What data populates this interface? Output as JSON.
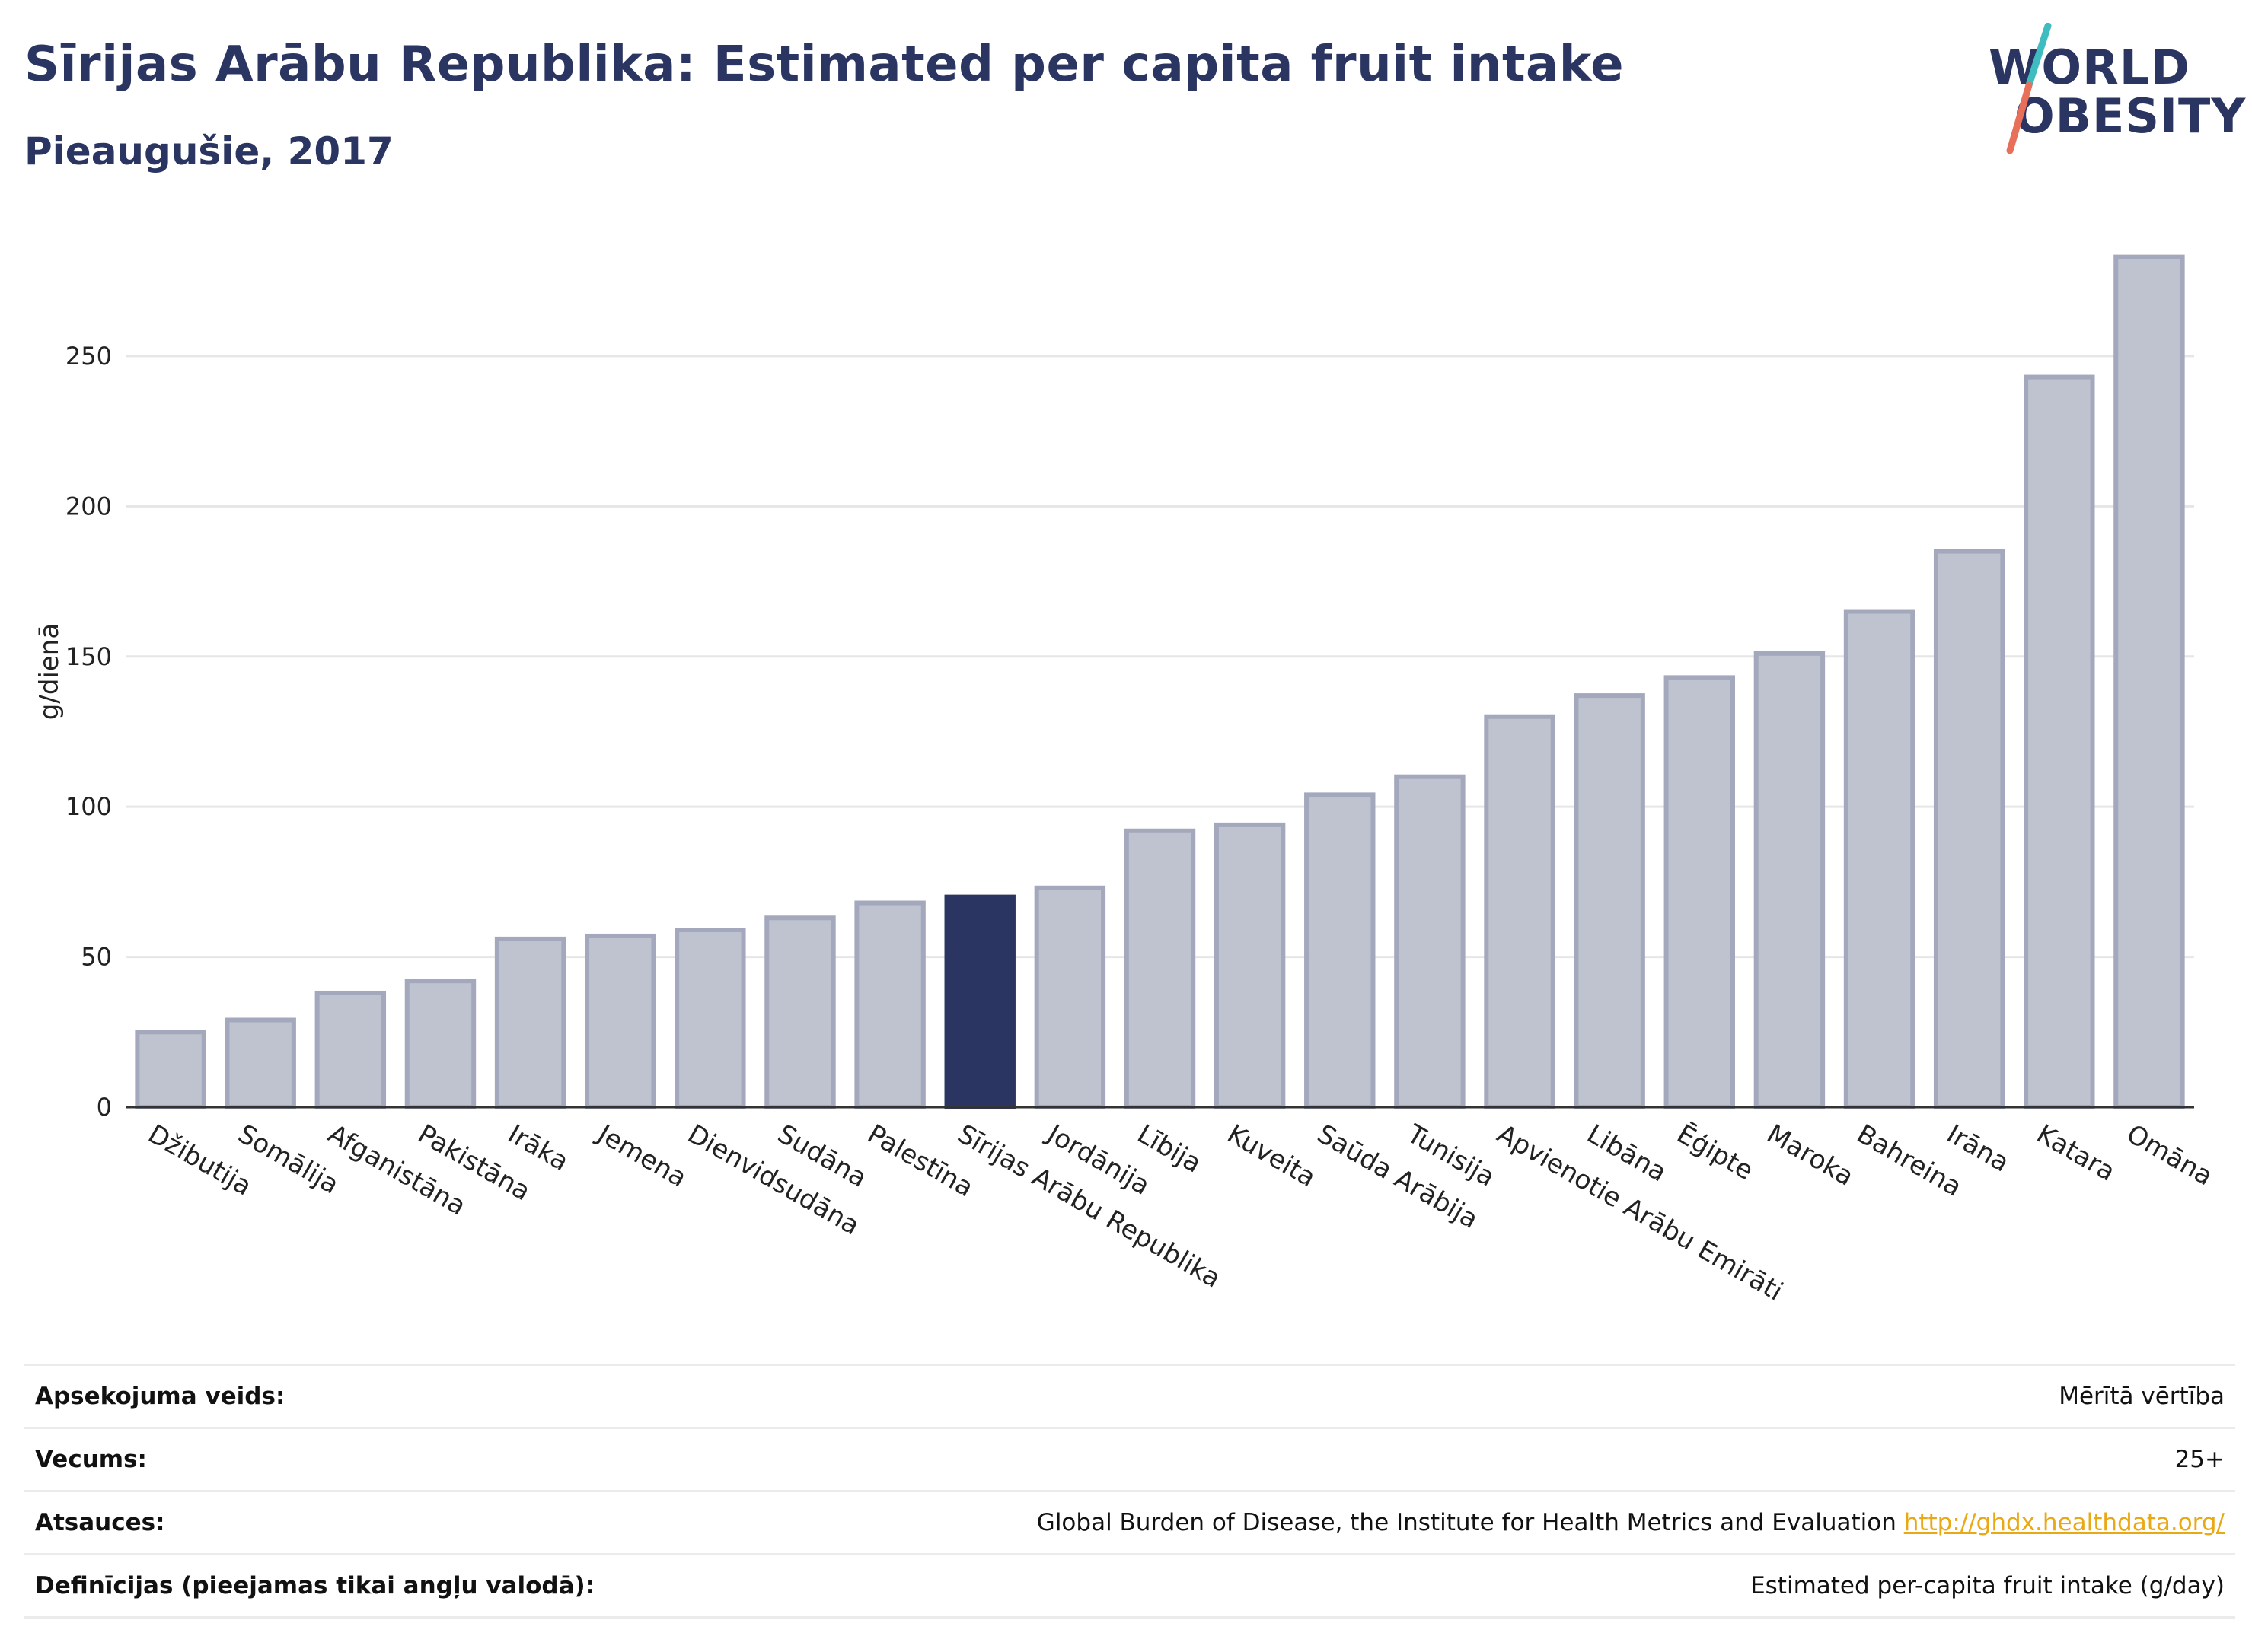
{
  "header": {
    "title": "Sīrijas Arābu Republika: Estimated per capita fruit intake",
    "subtitle": "Pieaugušie, 2017"
  },
  "logo": {
    "line1": "WORLD",
    "line2": "OBESITY",
    "colors": {
      "slash_top": "#3fbcc0",
      "slash_bottom": "#e8705a"
    }
  },
  "colors": {
    "bar": "#bfc3cf",
    "bar_border": "#a3a8bc",
    "highlight": "#2b3561",
    "grid": "#e6e6e6",
    "axis": "#333333"
  },
  "chart_data": {
    "type": "bar",
    "ylabel": "g/dienā",
    "ylim": [
      0,
      290
    ],
    "yticks": [
      0,
      50,
      100,
      150,
      200,
      250
    ],
    "grid": true,
    "highlight": "Sīrijas Arābu Republika",
    "categories": [
      "Džibutija",
      "Somālija",
      "Afganistāna",
      "Pakistāna",
      "Irāka",
      "Jemena",
      "Dienvidsudāna",
      "Sudāna",
      "Palestīna",
      "Sīrijas Arābu Republika",
      "Jordānija",
      "Lībija",
      "Kuveita",
      "Saūda Arābija",
      "Tunisija",
      "Apvienotie Arābu Emirāti",
      "Libāna",
      "Ēģipte",
      "Maroka",
      "Bahreina",
      "Irāna",
      "Katara",
      "Omāna"
    ],
    "values": [
      25,
      29,
      38,
      42,
      56,
      57,
      59,
      63,
      68,
      70,
      73,
      92,
      94,
      104,
      110,
      130,
      137,
      143,
      151,
      165,
      185,
      243,
      283
    ]
  },
  "info": [
    {
      "label": "Apsekojuma veids:",
      "value": "Mērītā vērtība",
      "link": ""
    },
    {
      "label": "Vecums:",
      "value": "25+",
      "link": ""
    },
    {
      "label": "Atsauces:",
      "value": "Global Burden of Disease, the Institute for Health Metrics and Evaluation",
      "link": "http://ghdx.healthdata.org/"
    },
    {
      "label": "Definīcijas (pieejamas tikai angļu valodā):",
      "value": "Estimated per-capita fruit intake (g/day)",
      "link": ""
    }
  ]
}
